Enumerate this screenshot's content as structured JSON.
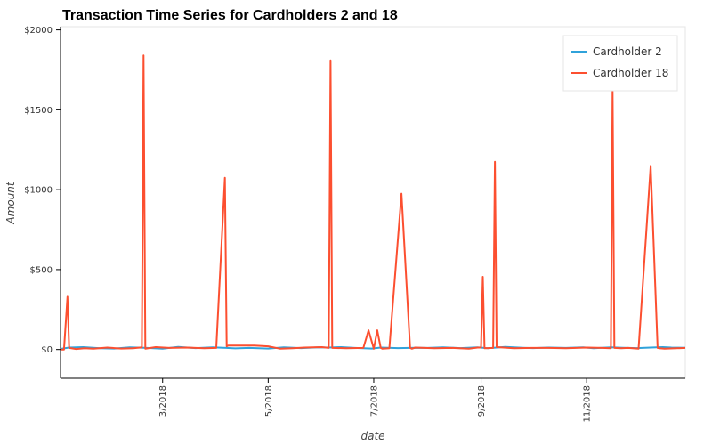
{
  "chart_data": {
    "type": "line",
    "title": "Transaction Time Series for Cardholders 2 and 18",
    "xlabel": "date",
    "ylabel": "Amount",
    "xlim": [
      "2018-01-01",
      "2018-12-28"
    ],
    "ylim": [
      -180,
      2020
    ],
    "y_ticks": [
      {
        "value": 0,
        "label": "$0"
      },
      {
        "value": 500,
        "label": "$500"
      },
      {
        "value": 1000,
        "label": "$1000"
      },
      {
        "value": 1500,
        "label": "$1500"
      },
      {
        "value": 2000,
        "label": "$2000"
      }
    ],
    "x_ticks": [
      {
        "value": "2018-03-01",
        "label": "3/2018"
      },
      {
        "value": "2018-05-01",
        "label": "5/2018"
      },
      {
        "value": "2018-07-01",
        "label": "7/2018"
      },
      {
        "value": "2018-09-01",
        "label": "9/2018"
      },
      {
        "value": "2018-11-01",
        "label": "11/2018"
      }
    ],
    "grid": false,
    "legend_position": "top-right",
    "series": [
      {
        "name": "Cardholder 2",
        "color": "#30a2da",
        "x": [
          "2018-01-01",
          "2018-01-06",
          "2018-01-14",
          "2018-01-24",
          "2018-02-01",
          "2018-02-10",
          "2018-02-20",
          "2018-03-01",
          "2018-03-10",
          "2018-03-20",
          "2018-03-30",
          "2018-04-05",
          "2018-04-12",
          "2018-04-20",
          "2018-05-01",
          "2018-05-10",
          "2018-05-20",
          "2018-05-30",
          "2018-06-05",
          "2018-06-12",
          "2018-06-20",
          "2018-06-30",
          "2018-07-05",
          "2018-07-15",
          "2018-07-25",
          "2018-08-01",
          "2018-08-10",
          "2018-08-20",
          "2018-08-30",
          "2018-09-05",
          "2018-09-15",
          "2018-09-25",
          "2018-10-01",
          "2018-10-10",
          "2018-10-20",
          "2018-10-30",
          "2018-11-05",
          "2018-11-15",
          "2018-11-22",
          "2018-11-30",
          "2018-12-08",
          "2018-12-15",
          "2018-12-20",
          "2018-12-28"
        ],
        "values": [
          4,
          12,
          15,
          8,
          6,
          13,
          10,
          5,
          16,
          9,
          14,
          11,
          7,
          10,
          6,
          13,
          9,
          14,
          12,
          15,
          10,
          6,
          12,
          9,
          11,
          10,
          14,
          9,
          13,
          8,
          16,
          11,
          9,
          12,
          10,
          14,
          8,
          13,
          11,
          9,
          12,
          15,
          12,
          11
        ]
      },
      {
        "name": "Cardholder 18",
        "color": "#fc4f30",
        "x": [
          "2018-01-01",
          "2018-01-03",
          "2018-01-05",
          "2018-01-06",
          "2018-01-10",
          "2018-01-15",
          "2018-01-20",
          "2018-01-28",
          "2018-02-05",
          "2018-02-12",
          "2018-02-17",
          "2018-02-18",
          "2018-02-19",
          "2018-02-25",
          "2018-03-05",
          "2018-03-15",
          "2018-03-25",
          "2018-04-01",
          "2018-04-06",
          "2018-04-07",
          "2018-04-08",
          "2018-04-23",
          "2018-05-01",
          "2018-05-08",
          "2018-05-15",
          "2018-05-22",
          "2018-06-01",
          "2018-06-05",
          "2018-06-06",
          "2018-06-07",
          "2018-06-15",
          "2018-06-25",
          "2018-06-28",
          "2018-07-01",
          "2018-07-03",
          "2018-07-05",
          "2018-07-06",
          "2018-07-10",
          "2018-07-17",
          "2018-07-22",
          "2018-07-23",
          "2018-07-25",
          "2018-08-05",
          "2018-08-15",
          "2018-08-25",
          "2018-08-30",
          "2018-09-01",
          "2018-09-02",
          "2018-09-03",
          "2018-09-08",
          "2018-09-09",
          "2018-09-10",
          "2018-09-20",
          "2018-09-30",
          "2018-10-10",
          "2018-10-20",
          "2018-11-01",
          "2018-11-10",
          "2018-11-15",
          "2018-11-16",
          "2018-11-17",
          "2018-11-21",
          "2018-11-25",
          "2018-12-01",
          "2018-12-08",
          "2018-12-12",
          "2018-12-13",
          "2018-12-16",
          "2018-12-28"
        ],
        "values": [
          0,
          0,
          330,
          10,
          3,
          8,
          5,
          12,
          6,
          8,
          14,
          1840,
          5,
          15,
          10,
          12,
          8,
          10,
          1075,
          20,
          25,
          25,
          20,
          5,
          8,
          12,
          15,
          10,
          1810,
          10,
          8,
          10,
          120,
          5,
          120,
          10,
          5,
          8,
          975,
          10,
          5,
          12,
          8,
          10,
          5,
          12,
          12,
          455,
          8,
          10,
          1175,
          15,
          8,
          10,
          10,
          8,
          12,
          10,
          8,
          1630,
          10,
          8,
          10,
          5,
          1150,
          10,
          8,
          5,
          10
        ]
      }
    ]
  }
}
